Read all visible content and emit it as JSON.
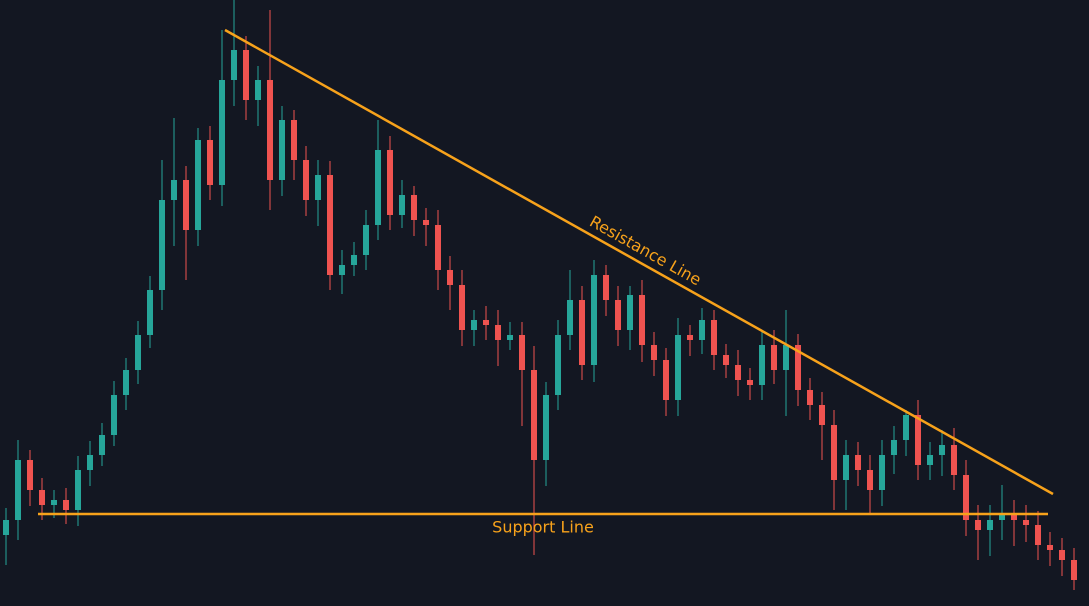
{
  "chart_data": {
    "type": "candlestick",
    "up_color": "#26a69a",
    "down_color": "#ef5350",
    "line_color": "#f7a21b",
    "open": [
      71,
      86,
      146,
      116,
      101,
      106,
      96,
      136,
      151,
      171,
      211,
      236,
      271,
      316,
      406,
      426,
      376,
      466,
      421,
      526,
      556,
      506,
      526,
      426,
      486,
      446,
      406,
      431,
      331,
      341,
      351,
      381,
      456,
      391,
      411,
      386,
      381,
      336,
      321,
      276,
      286,
      281,
      266,
      271,
      236,
      146,
      211,
      271,
      306,
      241,
      331,
      306,
      276,
      311,
      261,
      246,
      206,
      271,
      266,
      286,
      251,
      241,
      226,
      221,
      261,
      236,
      261,
      216,
      201,
      181,
      126,
      151,
      136,
      116,
      151,
      166,
      191,
      141,
      151,
      161,
      131,
      86,
      76,
      86,
      91,
      86,
      81,
      61,
      56,
      46
    ],
    "high": [
      98,
      166,
      156,
      128,
      116,
      118,
      150,
      165,
      183,
      225,
      248,
      285,
      330,
      446,
      488,
      440,
      478,
      480,
      576,
      606,
      570,
      540,
      596,
      500,
      496,
      460,
      446,
      445,
      356,
      364,
      396,
      486,
      470,
      426,
      420,
      398,
      396,
      350,
      336,
      296,
      300,
      296,
      284,
      284,
      260,
      224,
      286,
      336,
      320,
      346,
      341,
      320,
      320,
      326,
      274,
      258,
      288,
      281,
      298,
      296,
      262,
      256,
      238,
      276,
      276,
      296,
      272,
      228,
      214,
      196,
      166,
      164,
      151,
      166,
      180,
      196,
      206,
      164,
      176,
      178,
      146,
      101,
      101,
      121,
      106,
      101,
      95,
      74,
      68,
      58
    ],
    "low": [
      41,
      66,
      100,
      86,
      88,
      82,
      80,
      120,
      140,
      160,
      196,
      222,
      258,
      296,
      360,
      326,
      360,
      406,
      400,
      500,
      486,
      480,
      396,
      410,
      426,
      390,
      380,
      316,
      312,
      330,
      336,
      366,
      376,
      378,
      370,
      360,
      316,
      296,
      260,
      260,
      266,
      240,
      256,
      180,
      51,
      120,
      196,
      256,
      226,
      224,
      290,
      260,
      256,
      244,
      230,
      190,
      190,
      250,
      252,
      236,
      228,
      210,
      206,
      206,
      222,
      190,
      200,
      186,
      146,
      96,
      96,
      120,
      91,
      100,
      132,
      150,
      126,
      126,
      130,
      116,
      70,
      46,
      50,
      66,
      60,
      64,
      46,
      40,
      30,
      16
    ],
    "close": [
      86,
      146,
      116,
      101,
      106,
      96,
      136,
      151,
      171,
      211,
      236,
      271,
      316,
      406,
      426,
      376,
      466,
      421,
      526,
      556,
      506,
      526,
      426,
      486,
      446,
      406,
      431,
      331,
      341,
      351,
      381,
      456,
      391,
      411,
      386,
      381,
      336,
      321,
      276,
      286,
      281,
      266,
      271,
      236,
      146,
      211,
      271,
      306,
      241,
      331,
      306,
      276,
      311,
      261,
      246,
      206,
      271,
      266,
      286,
      251,
      241,
      226,
      221,
      261,
      236,
      261,
      216,
      201,
      181,
      126,
      151,
      136,
      116,
      151,
      166,
      191,
      141,
      151,
      161,
      131,
      86,
      76,
      86,
      91,
      86,
      81,
      61,
      56,
      46,
      26
    ],
    "support": {
      "label": "Support Line",
      "value": 92
    },
    "resistance": {
      "label": "Resistance Line",
      "values": [
        576,
        112
      ]
    }
  }
}
